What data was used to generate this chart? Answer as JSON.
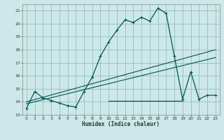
{
  "title": "",
  "xlabel": "Humidex (Indice chaleur)",
  "bg_color": "#cce8e8",
  "grid_color": "#99bbbb",
  "line_color": "#005555",
  "xlim": [
    -0.5,
    23.5
  ],
  "ylim": [
    13,
    21.5
  ],
  "yticks": [
    13,
    14,
    15,
    16,
    17,
    18,
    19,
    20,
    21
  ],
  "xticks": [
    0,
    1,
    2,
    3,
    4,
    5,
    6,
    7,
    8,
    9,
    10,
    11,
    12,
    13,
    14,
    15,
    16,
    17,
    18,
    19,
    20,
    21,
    22,
    23
  ],
  "curve_x": [
    0,
    1,
    2,
    3,
    4,
    5,
    6,
    7,
    8,
    9,
    10,
    11,
    12,
    13,
    14,
    15,
    16,
    17,
    18,
    19,
    20,
    21,
    22,
    23
  ],
  "curve_y": [
    13.5,
    14.8,
    14.3,
    14.1,
    13.9,
    13.7,
    13.6,
    14.8,
    15.9,
    17.5,
    18.6,
    19.5,
    20.3,
    20.1,
    20.5,
    20.2,
    21.2,
    20.8,
    17.5,
    14.2,
    16.3,
    14.2,
    14.5,
    14.5
  ],
  "line1_x": [
    0,
    23
  ],
  "line1_y": [
    14.0,
    18.0
  ],
  "line2_x": [
    0,
    23
  ],
  "line2_y": [
    13.85,
    17.4
  ],
  "hline_x": [
    10,
    19
  ],
  "hline_y": [
    14.1,
    14.1
  ]
}
